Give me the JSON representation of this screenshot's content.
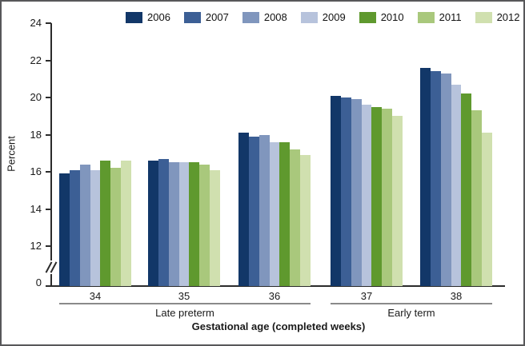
{
  "chart_data": {
    "type": "bar",
    "title": "",
    "ylabel": "Percent",
    "xlabel": "Gestational age (completed weeks)",
    "categories": [
      "34",
      "35",
      "36",
      "37",
      "38"
    ],
    "series": [
      {
        "name": "2006",
        "color": "#123768",
        "values": [
          15.9,
          16.6,
          18.1,
          20.1,
          21.6
        ]
      },
      {
        "name": "2007",
        "color": "#3c5f95",
        "values": [
          16.1,
          16.7,
          17.9,
          20.0,
          21.4
        ]
      },
      {
        "name": "2008",
        "color": "#8096bd",
        "values": [
          16.4,
          16.5,
          18.0,
          19.9,
          21.3
        ]
      },
      {
        "name": "2009",
        "color": "#b7c3dc",
        "values": [
          16.1,
          16.5,
          17.6,
          19.6,
          20.7
        ]
      },
      {
        "name": "2010",
        "color": "#5f992e",
        "values": [
          16.6,
          16.5,
          17.6,
          19.5,
          20.2
        ]
      },
      {
        "name": "2011",
        "color": "#a9c87c",
        "values": [
          16.2,
          16.4,
          17.2,
          19.4,
          19.3
        ]
      },
      {
        "name": "2012",
        "color": "#d0e0af",
        "values": [
          16.6,
          16.1,
          16.9,
          19.0,
          18.1
        ]
      }
    ],
    "y_ticks": [
      0,
      12,
      14,
      16,
      18,
      20,
      22,
      24
    ],
    "ylim": [
      0,
      24
    ],
    "axis_break_between": [
      0,
      12
    ],
    "grid": false,
    "legend_position": "top",
    "group_spans": [
      {
        "label": "Late preterm",
        "categories": [
          "34",
          "35",
          "36"
        ]
      },
      {
        "label": "Early term",
        "categories": [
          "37",
          "38"
        ]
      }
    ]
  }
}
